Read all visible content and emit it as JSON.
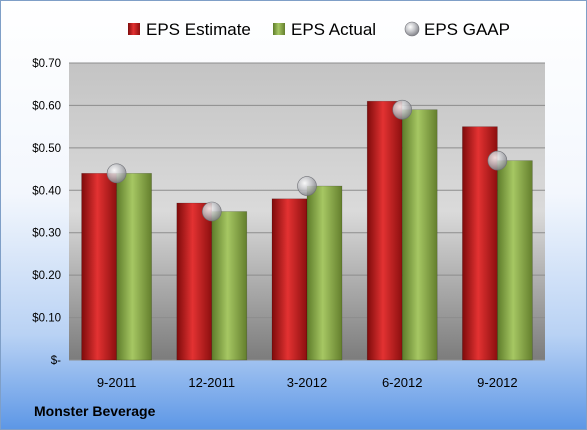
{
  "company": "Monster Beverage",
  "chart_data": {
    "type": "bar",
    "title": "",
    "xlabel": "",
    "ylabel": "",
    "categories": [
      "9-2011",
      "12-2011",
      "3-2012",
      "6-2012",
      "9-2012"
    ],
    "series": [
      {
        "name": "EPS Estimate",
        "kind": "bar",
        "color": "#c01818",
        "values": [
          0.44,
          0.37,
          0.38,
          0.61,
          0.55
        ]
      },
      {
        "name": "EPS Actual",
        "kind": "bar",
        "color": "#8cb14a",
        "values": [
          0.44,
          0.35,
          0.41,
          0.59,
          0.47
        ]
      },
      {
        "name": "EPS GAAP",
        "kind": "marker",
        "color": "#a9aab0",
        "values": [
          0.44,
          0.35,
          0.41,
          0.59,
          0.47
        ]
      }
    ],
    "ylim": [
      0,
      0.7
    ],
    "y_ticks": [
      0,
      0.1,
      0.2,
      0.3,
      0.4,
      0.5,
      0.6,
      0.7
    ],
    "y_tick_labels": [
      "$-",
      "$0.10",
      "$0.20",
      "$0.30",
      "$0.40",
      "$0.50",
      "$0.60",
      "$0.70"
    ],
    "grid": true,
    "legend_position": "top"
  }
}
